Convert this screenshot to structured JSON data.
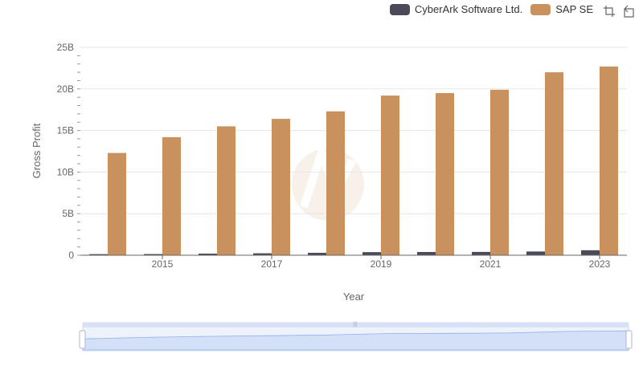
{
  "legend": {
    "items": [
      {
        "label": "CyberArk Software Ltd.",
        "color": "#4a4a58"
      },
      {
        "label": "SAP SE",
        "color": "#c8915e"
      }
    ]
  },
  "toolbox": {
    "icons": [
      "zoom-icon",
      "restore-icon"
    ]
  },
  "chart_data": {
    "type": "bar",
    "xlabel": "Year",
    "ylabel": "Gross Profit",
    "categories": [
      "2014",
      "2015",
      "2016",
      "2017",
      "2018",
      "2019",
      "2020",
      "2021",
      "2022",
      "2023"
    ],
    "x_tick_labels": [
      "2015",
      "2017",
      "2019",
      "2021",
      "2023"
    ],
    "y_ticks": [
      "0",
      "5B",
      "10B",
      "15B",
      "20B",
      "25B"
    ],
    "ylim": [
      0,
      25000000000
    ],
    "grid": true,
    "legend_position": "top-right",
    "series": [
      {
        "name": "CyberArk Software Ltd.",
        "color": "#4a4a58",
        "values": [
          130000000,
          140000000,
          190000000,
          230000000,
          290000000,
          370000000,
          390000000,
          400000000,
          450000000,
          600000000
        ]
      },
      {
        "name": "SAP SE",
        "color": "#c8915e",
        "values": [
          12300000000,
          14200000000,
          15500000000,
          16400000000,
          17300000000,
          19200000000,
          19500000000,
          19900000000,
          22000000000,
          22700000000
        ]
      }
    ]
  }
}
